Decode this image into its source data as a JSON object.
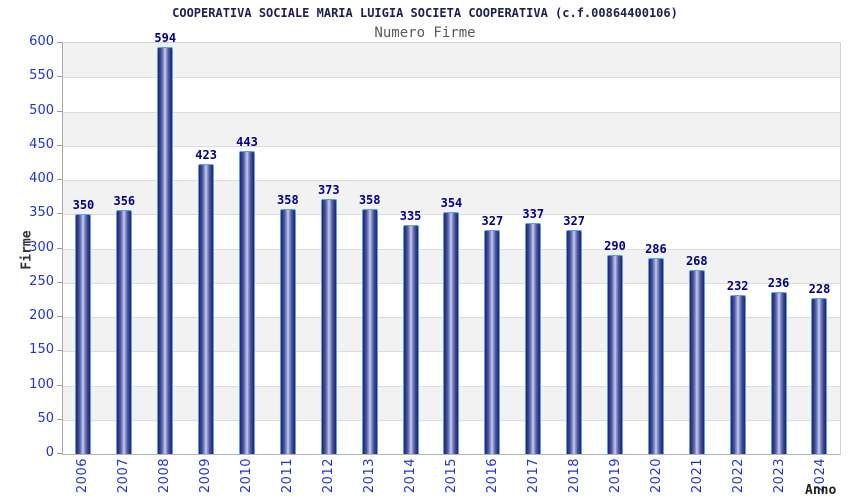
{
  "title": "COOPERATIVA SOCIALE MARIA LUIGIA SOCIETA COOPERATIVA (c.f.00864400106)",
  "subtitle": "Numero Firme",
  "chart_data": {
    "type": "bar",
    "title": "Numero Firme",
    "categories": [
      "2006",
      "2007",
      "2008",
      "2009",
      "2010",
      "2011",
      "2012",
      "2013",
      "2014",
      "2015",
      "2016",
      "2017",
      "2018",
      "2019",
      "2020",
      "2021",
      "2022",
      "2023",
      "2024"
    ],
    "values": [
      350,
      356,
      594,
      423,
      443,
      358,
      373,
      358,
      335,
      354,
      327,
      337,
      327,
      290,
      286,
      268,
      232,
      236,
      228
    ],
    "xlabel": "Anno",
    "ylabel": "Firme",
    "ylim": [
      0,
      600
    ],
    "ytick_step": 50,
    "grid": true,
    "legend_position": "none",
    "colors": {
      "title": "#1e1e50",
      "subtitle": "#5a5a5a",
      "tick_label": "#2233cc",
      "value_label": "#00008b",
      "bar_edge": "#1e2569",
      "bar_center": "#c9d0ee",
      "bar_outline": "#5aa2f0",
      "band_gray": "#f2f2f2",
      "band_white": "#ffffff",
      "gridline": "#dcdcdc"
    }
  }
}
